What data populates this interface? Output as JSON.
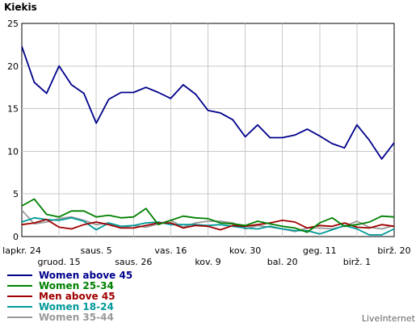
{
  "title": "Kiekis",
  "brand": "LiveInternet",
  "chart_data": {
    "type": "line",
    "title": "Kiekis",
    "ylim": [
      0,
      25
    ],
    "yticks": [
      0,
      5,
      10,
      15,
      20,
      25
    ],
    "grid": true,
    "legend_position": "bottom-left",
    "xtick_labels_row1": [
      "lapkr. 24",
      "saus. 5",
      "vas. 16",
      "kov. 30",
      "geg. 11",
      "birž. 20"
    ],
    "xtick_labels_row2": [
      "gruod. 15",
      "saus. 26",
      "kov. 9",
      "bal. 20",
      "birž. 1"
    ],
    "series": [
      {
        "name": "Women above 45",
        "color": "#00008b",
        "values": [
          22.3,
          18.1,
          16.8,
          20.0,
          17.8,
          16.8,
          13.3,
          16.1,
          16.9,
          16.9,
          17.5,
          16.9,
          16.2,
          17.8,
          16.7,
          14.8,
          14.5,
          13.7,
          11.7,
          13.1,
          11.6,
          11.6,
          11.9,
          12.6,
          11.8,
          10.9,
          10.4,
          13.1,
          11.3,
          9.1,
          11.0
        ]
      },
      {
        "name": "Women 25-34",
        "color": "#008000",
        "values": [
          3.6,
          4.4,
          2.6,
          2.3,
          3.0,
          3.0,
          2.3,
          2.5,
          2.2,
          2.3,
          3.3,
          1.4,
          1.9,
          2.4,
          2.2,
          2.1,
          1.6,
          1.5,
          1.3,
          1.8,
          1.5,
          1.2,
          1.0,
          0.5,
          1.6,
          2.2,
          1.2,
          1.4,
          1.7,
          2.4,
          2.3
        ]
      },
      {
        "name": "Men above 45",
        "color": "#a00000",
        "values": [
          1.4,
          1.6,
          2.0,
          1.1,
          0.9,
          1.4,
          1.7,
          1.4,
          1.0,
          1.0,
          1.3,
          1.6,
          1.6,
          1.0,
          1.3,
          1.2,
          0.8,
          1.3,
          1.2,
          1.4,
          1.6,
          1.9,
          1.7,
          1.0,
          1.3,
          1.2,
          1.6,
          1.1,
          1.0,
          1.4,
          1.2
        ]
      },
      {
        "name": "Women 18-24",
        "color": "#009999",
        "values": [
          1.7,
          2.2,
          2.0,
          1.9,
          2.2,
          1.8,
          0.8,
          1.6,
          1.2,
          1.3,
          1.6,
          1.7,
          1.4,
          1.4,
          1.4,
          1.3,
          1.4,
          1.2,
          1.0,
          0.9,
          1.2,
          0.9,
          0.7,
          0.7,
          0.3,
          0.8,
          1.3,
          0.9,
          0.2,
          0.2,
          0.9
        ]
      },
      {
        "name": "Women 35-44",
        "color": "#999999",
        "values": [
          3.1,
          1.5,
          1.7,
          2.1,
          2.3,
          1.9,
          1.4,
          1.6,
          1.0,
          1.3,
          1.1,
          1.5,
          1.9,
          1.1,
          1.6,
          1.8,
          1.8,
          1.6,
          0.9,
          1.3,
          1.1,
          0.9,
          0.6,
          1.0,
          1.0,
          0.9,
          1.2,
          1.8,
          1.1,
          0.9,
          1.3
        ]
      }
    ]
  }
}
